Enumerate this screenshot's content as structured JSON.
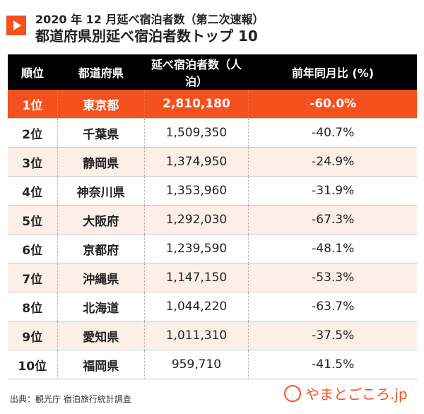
{
  "header": {
    "line1": "2020 年 12 月延べ宿泊者数（第二次速報）",
    "line2": "都道府県別延べ宿泊者数トップ 10"
  },
  "colors": {
    "accent": "#f4511e",
    "header_bg": "#000000",
    "alt_row": "#fdefe7"
  },
  "chart_data": {
    "type": "table",
    "columns": [
      "順位",
      "都道府県",
      "延べ宿泊者数（人泊）",
      "前年同月比 (%)"
    ],
    "rows": [
      [
        "1位",
        "東京都",
        "2,810,180",
        "-60.0%"
      ],
      [
        "2位",
        "千葉県",
        "1,509,350",
        "-40.7%"
      ],
      [
        "3位",
        "静岡県",
        "1,374,950",
        "-24.9%"
      ],
      [
        "4位",
        "神奈川県",
        "1,353,960",
        "-31.9%"
      ],
      [
        "5位",
        "大阪府",
        "1,292,030",
        "-67.3%"
      ],
      [
        "6位",
        "京都府",
        "1,239,590",
        "-48.1%"
      ],
      [
        "7位",
        "沖縄県",
        "1,147,150",
        "-53.3%"
      ],
      [
        "8位",
        "北海道",
        "1,044,220",
        "-63.7%"
      ],
      [
        "9位",
        "愛知県",
        "1,011,310",
        "-37.5%"
      ],
      [
        "10位",
        "福岡県",
        "959,710",
        "-41.5%"
      ]
    ]
  },
  "footer": {
    "source": "出典：観光庁 宿泊旅行統計調査",
    "logo": "やまとごころ.jp"
  }
}
